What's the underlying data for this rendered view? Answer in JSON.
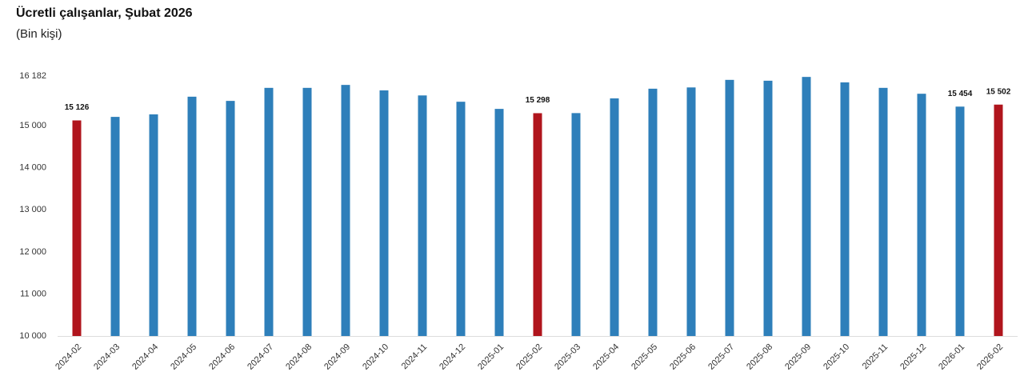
{
  "chart_data": {
    "type": "bar",
    "title": "Ücretli çalışanlar, Şubat 2026",
    "subtitle": "(Bin kişi)",
    "categories": [
      "2024-02",
      "2024-03",
      "2024-04",
      "2024-05",
      "2024-06",
      "2024-07",
      "2024-08",
      "2024-09",
      "2024-10",
      "2024-11",
      "2024-12",
      "2025-01",
      "2025-02",
      "2025-03",
      "2025-04",
      "2025-05",
      "2025-06",
      "2025-07",
      "2025-08",
      "2025-09",
      "2025-10",
      "2025-11",
      "2025-12",
      "2026-01",
      "2026-02"
    ],
    "values": [
      15126,
      15210,
      15270,
      15690,
      15590,
      15900,
      15900,
      15970,
      15840,
      15720,
      15570,
      15400,
      15298,
      15300,
      15650,
      15880,
      15910,
      16090,
      16070,
      16160,
      16030,
      15900,
      15760,
      15454,
      15502
    ],
    "value_labels": [
      "15 126",
      null,
      null,
      null,
      null,
      null,
      null,
      null,
      null,
      null,
      null,
      null,
      "15 298",
      null,
      null,
      null,
      null,
      null,
      null,
      null,
      null,
      null,
      null,
      "15 454",
      "15 502"
    ],
    "colors": [
      "#b0151d",
      "#2e7fba",
      "#2e7fba",
      "#2e7fba",
      "#2e7fba",
      "#2e7fba",
      "#2e7fba",
      "#2e7fba",
      "#2e7fba",
      "#2e7fba",
      "#2e7fba",
      "#2e7fba",
      "#b0151d",
      "#2e7fba",
      "#2e7fba",
      "#2e7fba",
      "#2e7fba",
      "#2e7fba",
      "#2e7fba",
      "#2e7fba",
      "#2e7fba",
      "#2e7fba",
      "#2e7fba",
      "#2e7fba",
      "#b0151d"
    ],
    "ylim": [
      10000,
      16182
    ],
    "yticks": [
      {
        "value": 10000,
        "label": "10 000"
      },
      {
        "value": 11000,
        "label": "11 000"
      },
      {
        "value": 12000,
        "label": "12 000"
      },
      {
        "value": 13000,
        "label": "13 000"
      },
      {
        "value": 14000,
        "label": "14 000"
      },
      {
        "value": 15000,
        "label": "15 000"
      },
      {
        "value": 16182,
        "label": "16 182"
      }
    ],
    "grid": false
  }
}
